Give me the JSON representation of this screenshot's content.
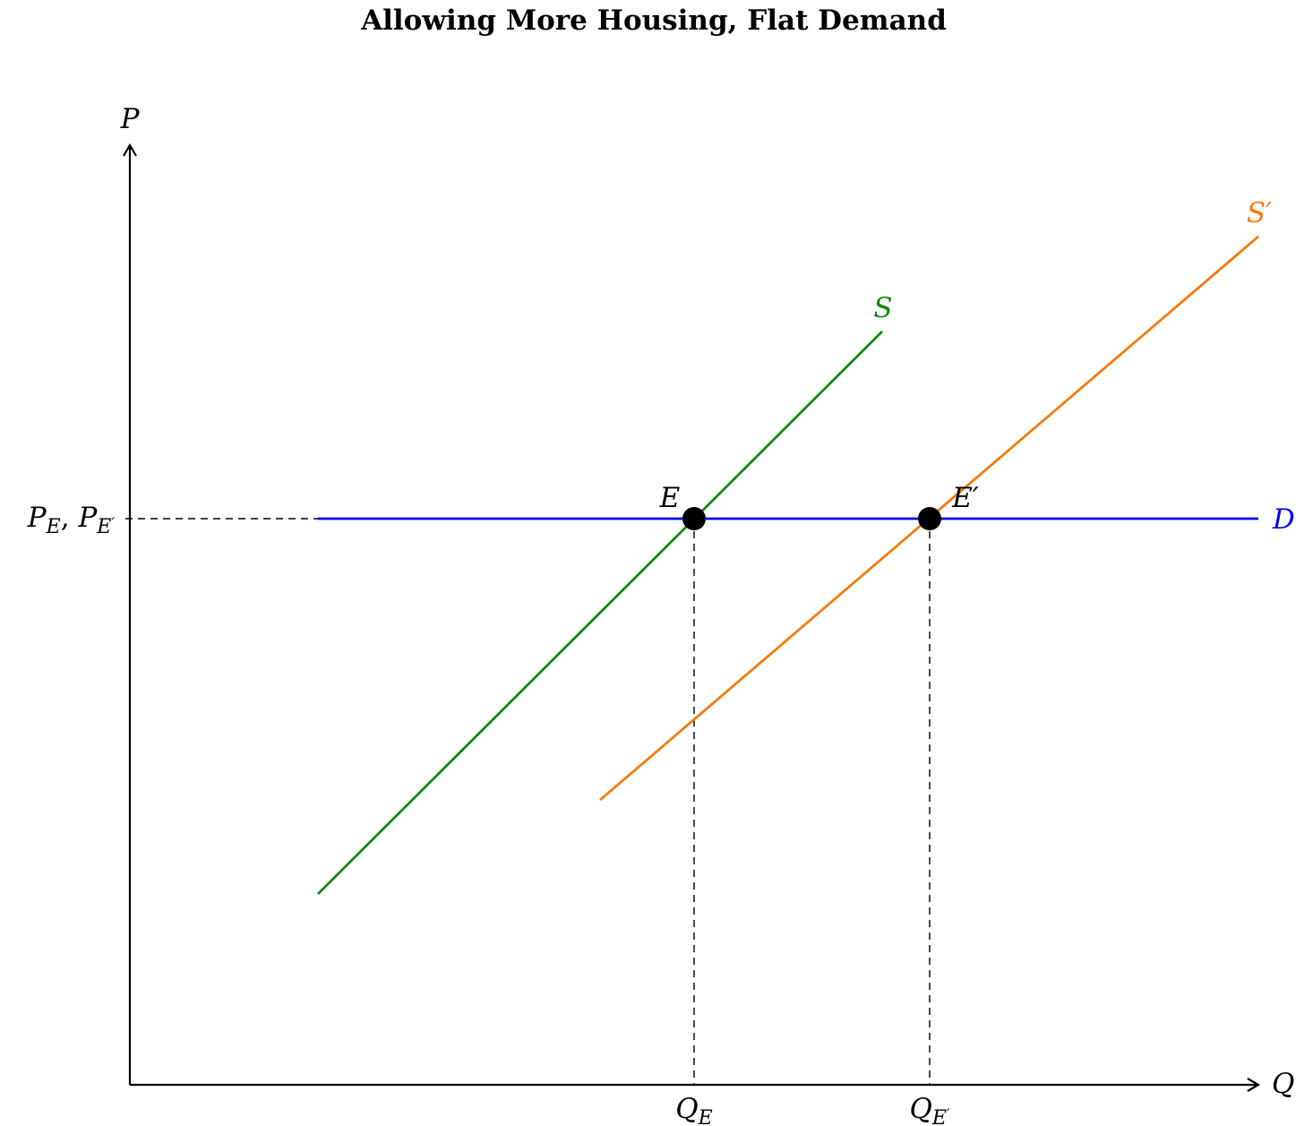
{
  "title": "Allowing More Housing, Flat Demand",
  "axes": {
    "y_label": "P",
    "x_label": "Q"
  },
  "curves": {
    "supply": {
      "label": "S",
      "color": "#118811"
    },
    "supply_shifted": {
      "label": "S′",
      "color": "#f57a0c"
    },
    "demand": {
      "label": "D",
      "color": "#0000ee"
    }
  },
  "points": {
    "equilibrium": {
      "label": "E"
    },
    "equilibrium_shifted": {
      "label": "E′"
    }
  },
  "ticks": {
    "price": {
      "main_1": "P",
      "sub_1": "E",
      "sep": ", ",
      "main_2": "P",
      "sub_2": "E",
      "prime": "′"
    },
    "qe": {
      "main": "Q",
      "sub": "E"
    },
    "qe_prime": {
      "main": "Q",
      "sub": "E",
      "prime": "′"
    }
  },
  "colors": {
    "axis": "#000000",
    "guide": "#000000",
    "point": "#000000"
  }
}
